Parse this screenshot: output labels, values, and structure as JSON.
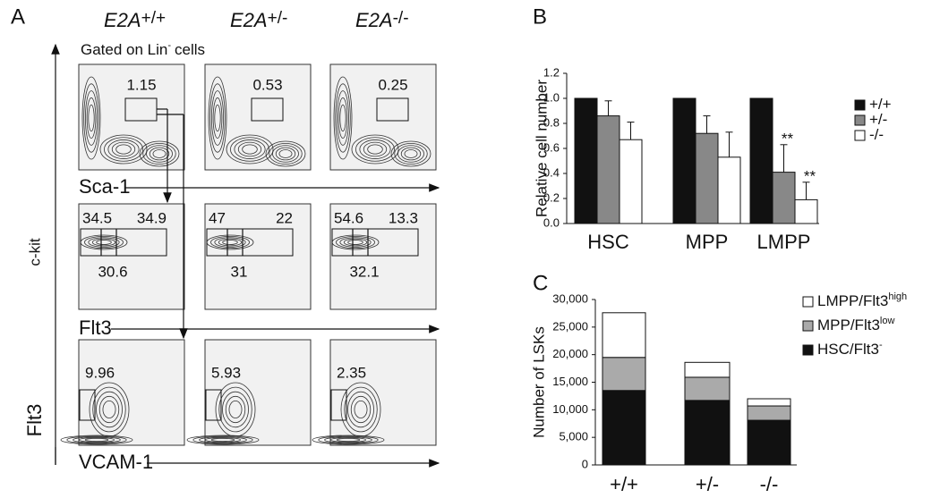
{
  "panel_a": {
    "letter": "A",
    "columns": [
      {
        "gene": "E2A",
        "genotype": "+/+"
      },
      {
        "gene": "E2A",
        "genotype": "+/-"
      },
      {
        "gene": "E2A",
        "genotype": "-/-"
      }
    ],
    "gate_note": {
      "text": "Gated on Lin",
      "sup": "-",
      "tail": "cells"
    },
    "axes": {
      "y_outer": "c-kit",
      "x_row1": "Sca-1",
      "x_row2": "Flt3",
      "y_row3": "Flt3",
      "x_row3": "VCAM-1"
    },
    "rows": [
      [
        1.15,
        0.53,
        0.25
      ],
      [
        [
          34.5,
          34.9,
          30.6
        ],
        [
          47,
          22,
          31
        ],
        [
          54.6,
          13.3,
          32.1
        ]
      ],
      [
        9.96,
        5.93,
        2.35
      ]
    ]
  },
  "chart_data": [
    {
      "type": "bar",
      "letter": "B",
      "y_label": "Relative cell number",
      "categories": [
        "HSC",
        "MPP",
        "LMPP"
      ],
      "series": [
        {
          "name": "+/+",
          "color": "#111111",
          "values": [
            1,
            1,
            1
          ]
        },
        {
          "name": "+/-",
          "color": "#888888",
          "values": [
            0.86,
            0.72,
            0.41
          ],
          "errors": [
            0.12,
            0.14,
            0.22
          ]
        },
        {
          "name": "-/-",
          "color": "#ffffff",
          "values": [
            0.67,
            0.53,
            0.19
          ],
          "errors": [
            0.14,
            0.2,
            0.14
          ]
        }
      ],
      "annotations": [
        "**",
        "**"
      ],
      "ylim": [
        0,
        1.2
      ],
      "yticks": [
        {
          "value": 0,
          "label": "0.0"
        },
        0.2,
        0.4,
        0.6,
        0.8,
        {
          "value": 1,
          "label": "1.0"
        },
        1.2
      ],
      "legend": "right"
    },
    {
      "type": "stacked-bar",
      "letter": "C",
      "y_label": "Number of LSKs",
      "categories": [
        "+/+",
        "+/-",
        "-/-"
      ],
      "series": [
        {
          "name": "HSC/Flt3",
          "name_sup": "-",
          "color": "#111111",
          "values": [
            13500,
            11700,
            8100
          ]
        },
        {
          "name": "MPP/Flt3",
          "name_sup": "low",
          "color": "#aaaaaa",
          "values": [
            6000,
            4200,
            2600
          ]
        },
        {
          "name": "LMPP/Flt3",
          "name_sup": "high",
          "color": "#ffffff",
          "values": [
            8100,
            2700,
            1300
          ]
        }
      ],
      "ylim": [
        0,
        30000
      ],
      "yticks": [
        0,
        {
          "value": 5000,
          "label": "5,000"
        },
        {
          "value": 10000,
          "label": "10,000"
        },
        {
          "value": 15000,
          "label": "15,000"
        },
        {
          "value": 20000,
          "label": "20,000"
        },
        {
          "value": 25000,
          "label": "25,000"
        },
        {
          "value": 30000,
          "label": "30,000"
        }
      ],
      "legend": "right"
    }
  ]
}
